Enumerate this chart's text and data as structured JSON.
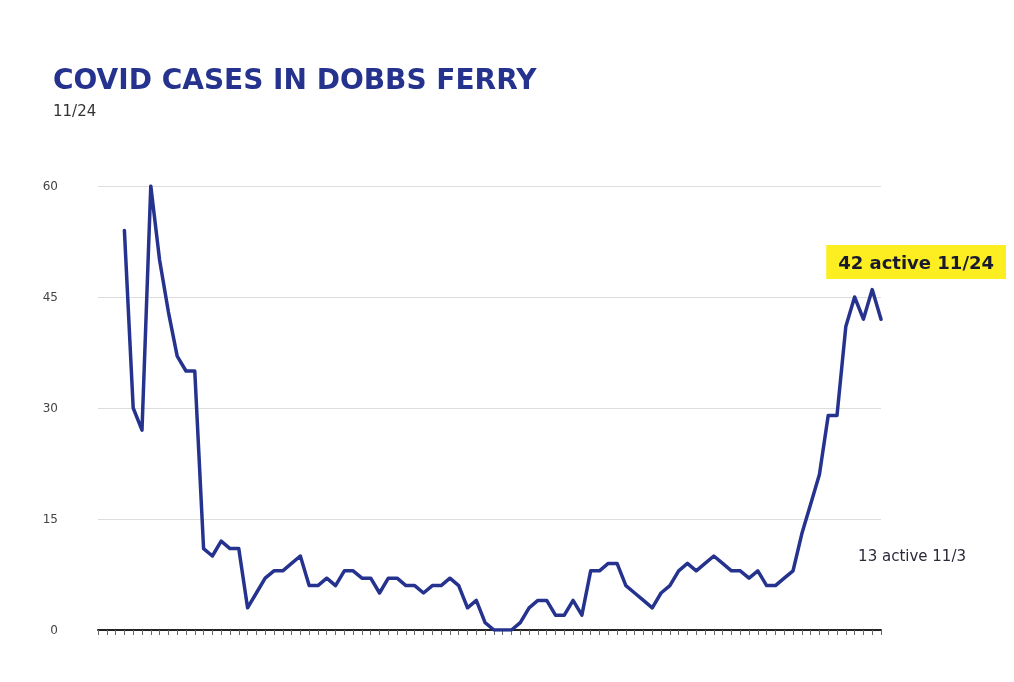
{
  "chart_data": {
    "type": "line",
    "title": "COVID CASES IN DOBBS FERRY",
    "subtitle": "11/24",
    "categories": [
      null,
      null,
      null,
      null,
      null,
      null,
      null,
      null,
      null,
      null,
      null,
      null,
      null,
      null,
      null,
      null,
      null,
      null,
      null,
      null,
      null,
      null,
      null,
      null,
      null,
      null,
      null,
      null,
      null,
      null,
      null,
      null,
      null,
      null,
      null,
      null,
      null,
      null,
      null,
      null,
      null,
      null,
      null,
      null,
      null,
      null,
      null,
      null,
      null,
      null,
      null,
      null,
      null,
      null,
      null,
      null,
      null,
      null,
      null,
      null,
      null,
      null,
      null,
      null,
      null,
      null,
      null,
      null,
      null,
      null,
      null,
      null,
      null,
      null,
      null,
      null,
      null,
      null,
      null,
      null,
      null,
      null,
      null,
      null,
      null,
      null,
      null,
      null,
      null,
      null
    ],
    "series": [
      {
        "color": "#25338f",
        "values": [
          null,
          null,
          null,
          54,
          30,
          27,
          60,
          50,
          43,
          37,
          35,
          35,
          11,
          10,
          12,
          11,
          11,
          3,
          5,
          7,
          8,
          8,
          9,
          10,
          6,
          6,
          7,
          6,
          8,
          8,
          7,
          7,
          5,
          7,
          7,
          6,
          6,
          5,
          6,
          6,
          7,
          6,
          3,
          4,
          1,
          0,
          0,
          0,
          1,
          3,
          4,
          4,
          2,
          2,
          4,
          2,
          8,
          8,
          9,
          9,
          6,
          5,
          4,
          3,
          5,
          6,
          8,
          9,
          8,
          9,
          10,
          9,
          8,
          8,
          7,
          8,
          6,
          6,
          7,
          8,
          13,
          17,
          21,
          29,
          29,
          41,
          45,
          42,
          46,
          42
        ]
      }
    ],
    "ylim": [
      0,
      60
    ],
    "yticks": [
      0,
      15,
      30,
      45,
      60
    ],
    "grid": "y",
    "marker": "none",
    "line_style": "solid",
    "annotations": [
      "42 active 11/24",
      "13 active 11/3"
    ]
  }
}
